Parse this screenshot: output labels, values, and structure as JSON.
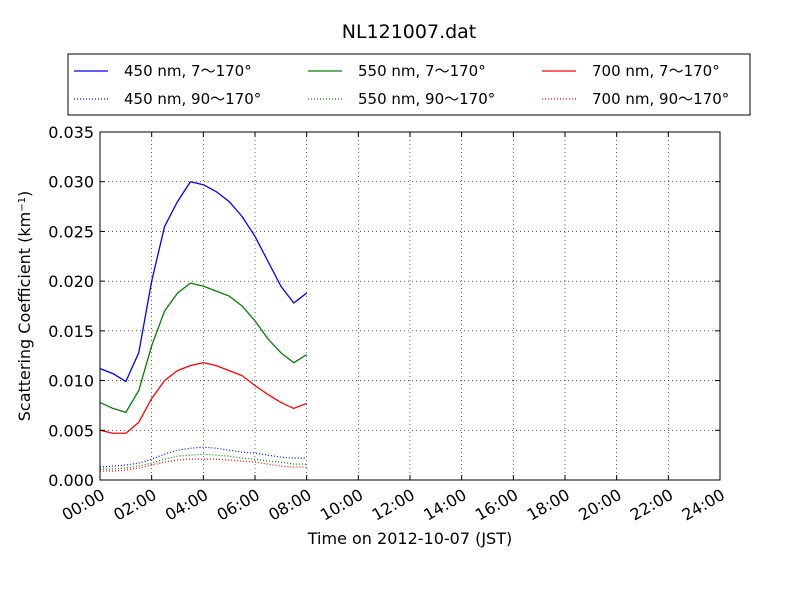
{
  "chart_data": {
    "type": "line",
    "title": "NL121007.dat",
    "xlabel": "Time on 2012-10-07 (JST)",
    "ylabel_main": "Scattering Coefficient (km",
    "ylabel_sup": "−1",
    "ylabel_end": ")",
    "xlim": [
      "2012-10-07 00:00",
      "2012-10-08 00:00"
    ],
    "ylim": [
      0,
      0.035
    ],
    "x_ticks": [
      "00:00",
      "02:00",
      "04:00",
      "06:00",
      "08:00",
      "10:00",
      "12:00",
      "14:00",
      "16:00",
      "18:00",
      "20:00",
      "22:00",
      "24:00"
    ],
    "y_ticks": [
      "0.000",
      "0.005",
      "0.010",
      "0.015",
      "0.020",
      "0.025",
      "0.030",
      "0.035"
    ],
    "grid": true,
    "legend_position": "top",
    "series": [
      {
        "name": "450 nm, 7～170°",
        "color": "#0000ff",
        "style": "solid",
        "x": [
          "00:00",
          "00:30",
          "01:00",
          "01:30",
          "02:00",
          "02:30",
          "03:00",
          "03:30",
          "04:00",
          "04:30",
          "05:00",
          "05:30",
          "06:00",
          "06:30",
          "07:00",
          "07:30",
          "08:00"
        ],
        "values": [
          0.0112,
          0.0107,
          0.0099,
          0.0128,
          0.02,
          0.0255,
          0.028,
          0.03,
          0.0297,
          0.029,
          0.028,
          0.0265,
          0.0245,
          0.022,
          0.0195,
          0.0178,
          0.0188
        ]
      },
      {
        "name": "550 nm, 7～170°",
        "color": "#008000",
        "style": "solid",
        "x": [
          "00:00",
          "00:30",
          "01:00",
          "01:30",
          "02:00",
          "02:30",
          "03:00",
          "03:30",
          "04:00",
          "04:30",
          "05:00",
          "05:30",
          "06:00",
          "06:30",
          "07:00",
          "07:30",
          "08:00"
        ],
        "values": [
          0.0078,
          0.0072,
          0.0068,
          0.009,
          0.0135,
          0.017,
          0.0188,
          0.0198,
          0.0195,
          0.019,
          0.0185,
          0.0175,
          0.016,
          0.0142,
          0.0128,
          0.0118,
          0.0126
        ]
      },
      {
        "name": "700 nm, 7～170°",
        "color": "#ff0000",
        "style": "solid",
        "x": [
          "00:00",
          "00:30",
          "01:00",
          "01:30",
          "02:00",
          "02:30",
          "03:00",
          "03:30",
          "04:00",
          "04:30",
          "05:00",
          "05:30",
          "06:00",
          "06:30",
          "07:00",
          "07:30",
          "08:00"
        ],
        "values": [
          0.005,
          0.0047,
          0.0047,
          0.0058,
          0.0082,
          0.01,
          0.011,
          0.0115,
          0.0118,
          0.0115,
          0.011,
          0.0105,
          0.0095,
          0.0086,
          0.0078,
          0.0072,
          0.0077
        ]
      },
      {
        "name": "450 nm, 90～170°",
        "color": "#0000ff",
        "style": "dotted",
        "x": [
          "00:00",
          "00:30",
          "01:00",
          "01:30",
          "02:00",
          "02:30",
          "03:00",
          "03:30",
          "04:00",
          "04:30",
          "05:00",
          "05:30",
          "06:00",
          "06:30",
          "07:00",
          "07:30",
          "08:00"
        ],
        "values": [
          0.0013,
          0.0014,
          0.0015,
          0.0017,
          0.0021,
          0.0026,
          0.003,
          0.0032,
          0.0033,
          0.0032,
          0.003,
          0.0028,
          0.0027,
          0.0025,
          0.0023,
          0.0022,
          0.0022
        ]
      },
      {
        "name": "550 nm, 90～170°",
        "color": "#008000",
        "style": "dotted",
        "x": [
          "00:00",
          "00:30",
          "01:00",
          "01:30",
          "02:00",
          "02:30",
          "03:00",
          "03:30",
          "04:00",
          "04:30",
          "05:00",
          "05:30",
          "06:00",
          "06:30",
          "07:00",
          "07:30",
          "08:00"
        ],
        "values": [
          0.0011,
          0.0011,
          0.0012,
          0.0014,
          0.0017,
          0.0021,
          0.0024,
          0.0025,
          0.0026,
          0.0025,
          0.0024,
          0.0022,
          0.0021,
          0.0019,
          0.0018,
          0.0016,
          0.0016
        ]
      },
      {
        "name": "700 nm, 90～170°",
        "color": "#ff0000",
        "style": "dotted",
        "x": [
          "00:00",
          "00:30",
          "01:00",
          "01:30",
          "02:00",
          "02:30",
          "03:00",
          "03:30",
          "04:00",
          "04:30",
          "05:00",
          "05:30",
          "06:00",
          "06:30",
          "07:00",
          "07:30",
          "08:00"
        ],
        "values": [
          0.0009,
          0.0009,
          0.001,
          0.0012,
          0.0015,
          0.0018,
          0.002,
          0.0021,
          0.0021,
          0.0021,
          0.002,
          0.0019,
          0.0018,
          0.0016,
          0.0014,
          0.0013,
          0.0013
        ]
      }
    ]
  }
}
